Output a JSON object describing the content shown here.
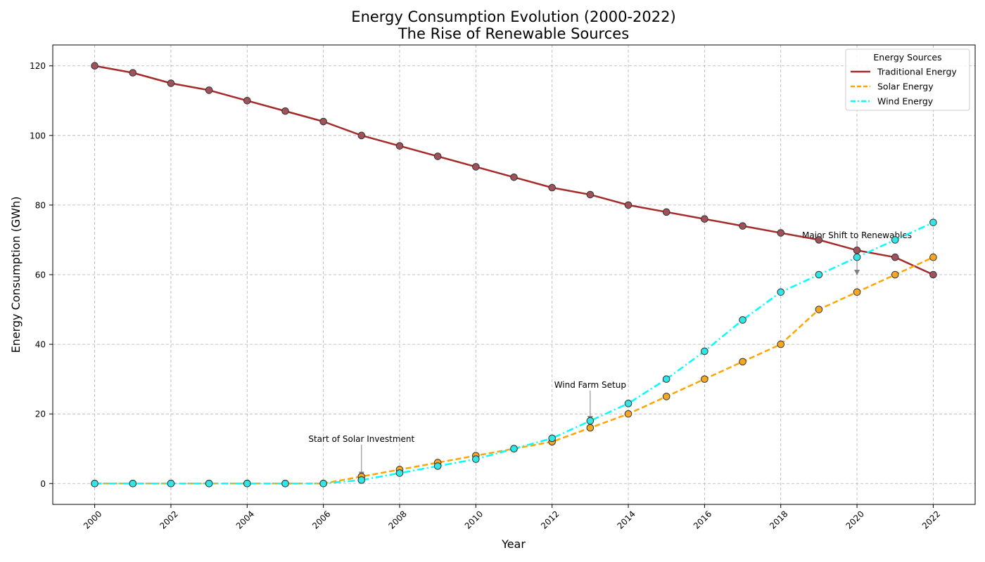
{
  "chart_data": {
    "type": "line",
    "title": "Energy Consumption Evolution (2000-2022)",
    "subtitle": "The Rise of Renewable Sources",
    "xlabel": "Year",
    "ylabel": "Energy Consumption (GWh)",
    "x": [
      2000,
      2001,
      2002,
      2003,
      2004,
      2005,
      2006,
      2007,
      2008,
      2009,
      2010,
      2011,
      2012,
      2013,
      2014,
      2015,
      2016,
      2017,
      2018,
      2019,
      2020,
      2021,
      2022
    ],
    "xticks": [
      "2000",
      "2002",
      "2004",
      "2006",
      "2008",
      "2010",
      "2012",
      "2014",
      "2016",
      "2018",
      "2020",
      "2022"
    ],
    "yticks": [
      "0",
      "20",
      "40",
      "60",
      "80",
      "100",
      "120"
    ],
    "xlim": [
      1998.9,
      2023.1
    ],
    "ylim": [
      -6,
      126
    ],
    "grid": true,
    "legend_title": "Energy Sources",
    "legend_position": "top-right",
    "series": [
      {
        "name": "Traditional Energy",
        "color": "#a52a2a",
        "marker_color": "#a0525a",
        "style": "solid",
        "values": [
          120,
          118,
          115,
          113,
          110,
          107,
          104,
          100,
          97,
          94,
          91,
          88,
          85,
          83,
          80,
          78,
          76,
          74,
          72,
          70,
          67,
          65,
          60
        ]
      },
      {
        "name": "Solar Energy",
        "color": "#ffa500",
        "marker_color": "#f5a623",
        "style": "dashed",
        "values": [
          0,
          0,
          0,
          0,
          0,
          0,
          0,
          2,
          4,
          6,
          8,
          10,
          12,
          16,
          20,
          25,
          30,
          35,
          40,
          50,
          55,
          60,
          65
        ]
      },
      {
        "name": "Wind Energy",
        "color": "#00ffff",
        "marker_color": "#33e6e6",
        "style": "dashdot",
        "values": [
          0,
          0,
          0,
          0,
          0,
          0,
          0,
          1,
          3,
          5,
          7,
          10,
          13,
          18,
          23,
          30,
          38,
          47,
          55,
          60,
          65,
          70,
          75
        ]
      }
    ],
    "annotations": [
      {
        "text": "Start of Solar Investment",
        "x": 2007,
        "y": 2,
        "text_x": 2007,
        "text_y": 12
      },
      {
        "text": "Wind Farm Setup",
        "x": 2013,
        "y": 18,
        "text_x": 2013,
        "text_y": 27.5
      },
      {
        "text": "Major Shift to Renewables",
        "x": 2020,
        "y": 60,
        "text_x": 2020,
        "text_y": 70.5
      }
    ]
  }
}
